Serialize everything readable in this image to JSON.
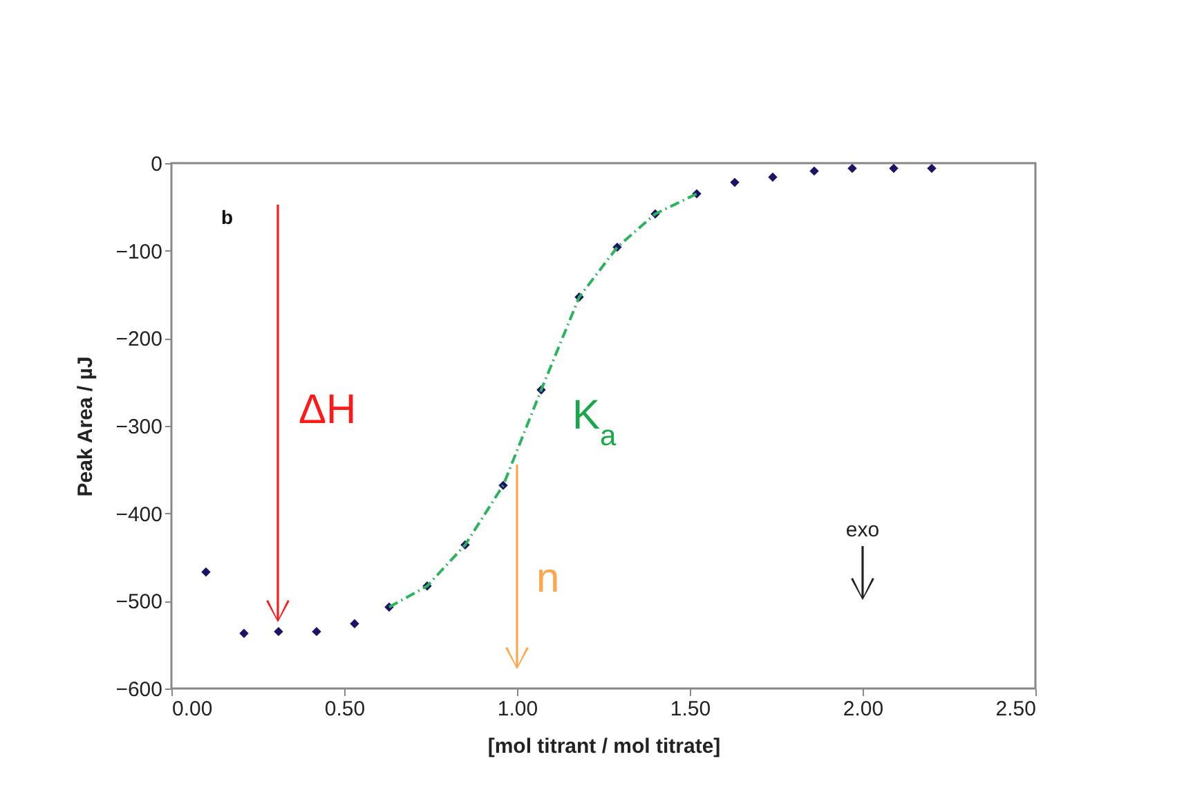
{
  "chart_data": {
    "type": "scatter",
    "xlabel": "[mol titrant / mol titrate]",
    "ylabel": "Peak Area / µJ",
    "xlim": [
      0,
      2.5
    ],
    "xticks": [
      {
        "value": 0,
        "label": "0.00"
      },
      {
        "value": 0.5,
        "label": "0.50"
      },
      {
        "value": 1,
        "label": "1.00"
      },
      {
        "value": 1.5,
        "label": "1.50"
      },
      {
        "value": 2,
        "label": "2.00"
      },
      {
        "value": 2.5,
        "label": "2.50"
      }
    ],
    "ylim": [
      -600,
      0
    ],
    "yticks": [
      -600,
      -500,
      -400,
      -300,
      -200,
      -100,
      0
    ],
    "series": [
      {
        "marker": "diamond",
        "color": "#1b1464",
        "x": [
          0.1,
          0.21,
          0.31,
          0.42,
          0.53,
          0.63,
          0.74,
          0.85,
          0.96,
          1.07,
          1.18,
          1.29,
          1.4,
          1.52,
          1.63,
          1.74,
          1.86,
          1.97,
          2.09,
          2.2
        ],
        "values": [
          -467,
          -537,
          -535,
          -535,
          -526,
          -507,
          -483,
          -436,
          -368,
          -259,
          -153,
          -96,
          -58,
          -35,
          -22,
          -16,
          -9,
          -6,
          -6,
          -6
        ]
      },
      {
        "type": "line",
        "color": "#2db35d",
        "line_style": "dashed",
        "x": [
          0.63,
          0.74,
          0.85,
          0.96,
          1.07,
          1.18,
          1.29,
          1.4,
          1.52
        ],
        "values": [
          -507,
          -483,
          -436,
          -368,
          -259,
          -153,
          -96,
          -58,
          -35
        ]
      }
    ],
    "annotations": [
      "b",
      "ΔH",
      "K$_{a}$",
      "n",
      "exo"
    ]
  }
}
